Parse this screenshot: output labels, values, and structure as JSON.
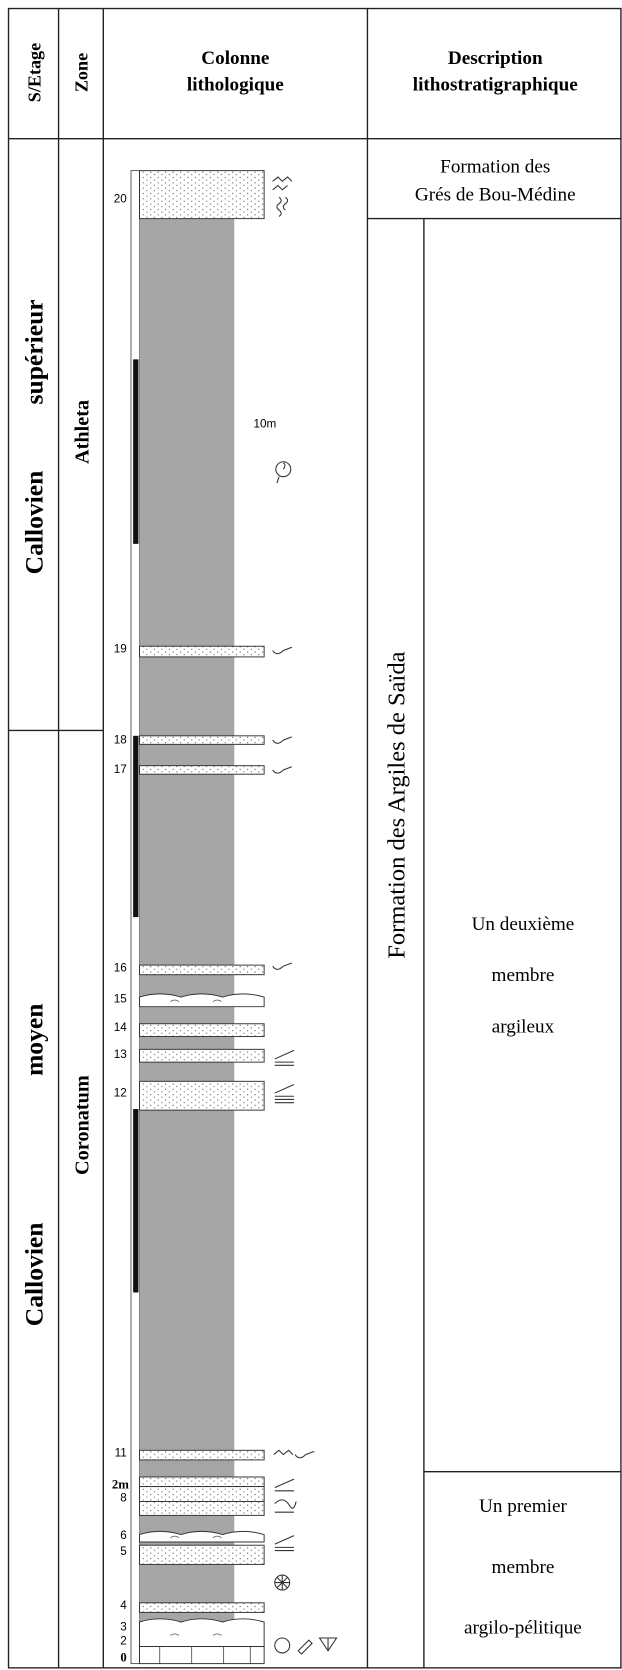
{
  "header": {
    "stage": "S/Etage",
    "zone": "Zone",
    "column": [
      "Colonne",
      "lithologique"
    ],
    "description": [
      "Description",
      "lithostratigraphique"
    ]
  },
  "stages": [
    [
      "Callovien",
      "supérieur"
    ],
    [
      "Callovien",
      "moyen"
    ]
  ],
  "zones": [
    "Athleta",
    "Coronatum"
  ],
  "formations": [
    [
      "Formation des",
      "Grés de Bou-Médine"
    ],
    "Formation des Argiles de Saïda"
  ],
  "members": [
    [
      "Un deuxième",
      "membre",
      "argileux"
    ],
    [
      "Un premier",
      "membre",
      "argilo-pélitique"
    ]
  ],
  "column": {
    "scale": "10m",
    "scale_small": "2m",
    "beds": [
      "20",
      "19",
      "18",
      "17",
      "16",
      "15",
      "14",
      "13",
      "12",
      "11",
      "8",
      "6",
      "5",
      "4",
      "3",
      "2",
      "0"
    ]
  }
}
